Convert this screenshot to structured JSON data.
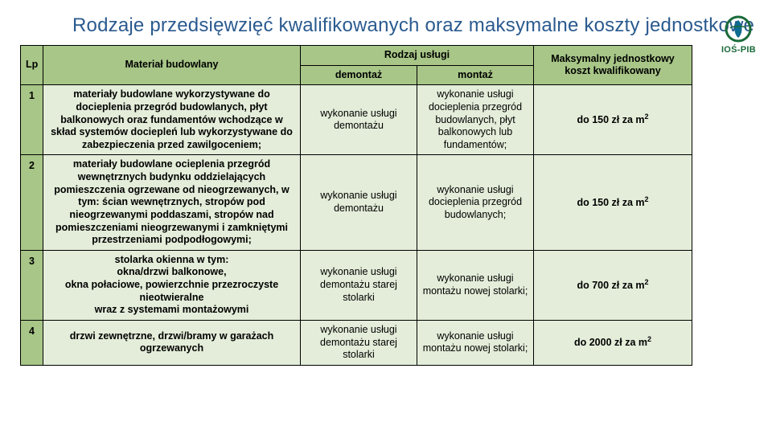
{
  "title": "Rodzaje przedsięwzięć kwalifikowanych oraz maksymalne koszty jednostkowe",
  "logo_text": "IOŚ-PIB",
  "headers": {
    "lp": "Lp",
    "material": "Materiał budowlany",
    "service_group": "Rodzaj usługi",
    "demontaz": "demontaż",
    "montaz": "montaż",
    "cost": "Maksymalny jednostkowy koszt kwalifikowany"
  },
  "rows": [
    {
      "lp": "1",
      "material": "materiały budowlane wykorzystywane do docieplenia przegród budowlanych, płyt balkonowych oraz fundamentów wchodzące w skład systemów dociepleń lub wykorzystywane do zabezpieczenia przed zawilgoceniem;",
      "demontaz": "wykonanie usługi demontażu",
      "montaz": "wykonanie usługi docieplenia przegród budowlanych, płyt balkonowych lub fundamentów;",
      "cost_prefix": "do 150 zł za m",
      "cost_sup": "2"
    },
    {
      "lp": "2",
      "material": "materiały budowlane ocieplenia przegród wewnętrznych budynku oddzielających pomieszczenia ogrzewane od nieogrzewanych, w tym: ścian wewnętrznych, stropów pod nieogrzewanymi poddaszami, stropów nad pomieszczeniami nieogrzewanymi i zamkniętymi przestrzeniami podpodłogowymi;",
      "demontaz": "wykonanie usługi demontażu",
      "montaz": "wykonanie usługi docieplenia przegród budowlanych;",
      "cost_prefix": "do 150 zł za m",
      "cost_sup": "2"
    },
    {
      "lp": "3",
      "material": "stolarka okienna w tym:\nokna/drzwi balkonowe,\nokna połaciowe, powierzchnie przezroczyste nieotwieralne\nwraz z systemami montażowymi",
      "demontaz": "wykonanie usługi demontażu starej stolarki",
      "montaz": "wykonanie usługi montażu nowej stolarki;",
      "cost_prefix": "do 700 zł za m",
      "cost_sup": "2"
    },
    {
      "lp": "4",
      "material": "drzwi zewnętrzne, drzwi/bramy w garażach ogrzewanych",
      "demontaz": "wykonanie usługi demontażu starej stolarki",
      "montaz": "wykonanie usługi montażu nowej stolarki;",
      "cost_prefix": "do 2000 zł za m",
      "cost_sup": "2"
    }
  ],
  "colors": {
    "title": "#2a5a8f",
    "header_bg": "#a7c687",
    "row_bg": "#e3edd9",
    "border": "#000000",
    "logo_ring": "#1a6b3a",
    "logo_inner": "#0f6b8f"
  }
}
